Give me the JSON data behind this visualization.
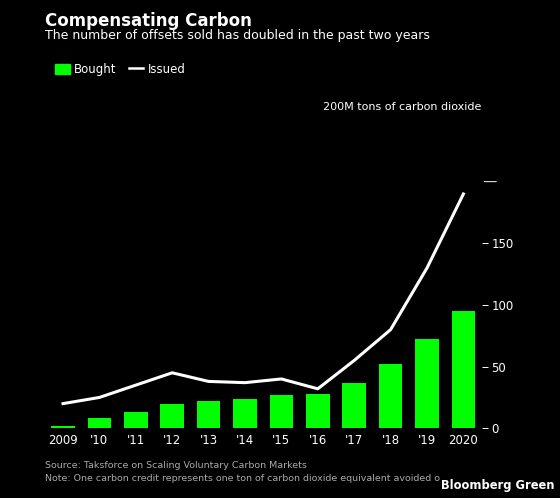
{
  "title": "Compensating Carbon",
  "subtitle": "The number of offsets sold has doubled in the past two years",
  "ylabel_annotation": "200M tons of carbon dioxide",
  "source_note": "Source: Taksforce on Scaling Voluntary Carbon Markets",
  "note2": "Note: One carbon credit represents one ton of carbon dioxide equivalent avoided o",
  "branding": "Bloomberg Green",
  "years": [
    "2009",
    "'10",
    "'11",
    "'12",
    "'13",
    "'14",
    "'15",
    "'16",
    "'17",
    "'18",
    "'19",
    "2020"
  ],
  "bar_values": [
    2,
    8,
    13,
    20,
    22,
    24,
    27,
    28,
    37,
    52,
    72,
    95
  ],
  "line_values": [
    20,
    25,
    35,
    45,
    38,
    37,
    40,
    32,
    55,
    80,
    130,
    190
  ],
  "bar_color": "#00ff00",
  "line_color": "#ffffff",
  "bg_color": "#000000",
  "text_color": "#ffffff",
  "dim_text_color": "#aaaaaa",
  "legend_bought_color": "#00ff00",
  "ylim": [
    0,
    210
  ],
  "yticks": [
    0,
    50,
    100,
    150
  ],
  "title_fontsize": 12,
  "subtitle_fontsize": 9,
  "axis_fontsize": 8.5,
  "source_fontsize": 6.8
}
